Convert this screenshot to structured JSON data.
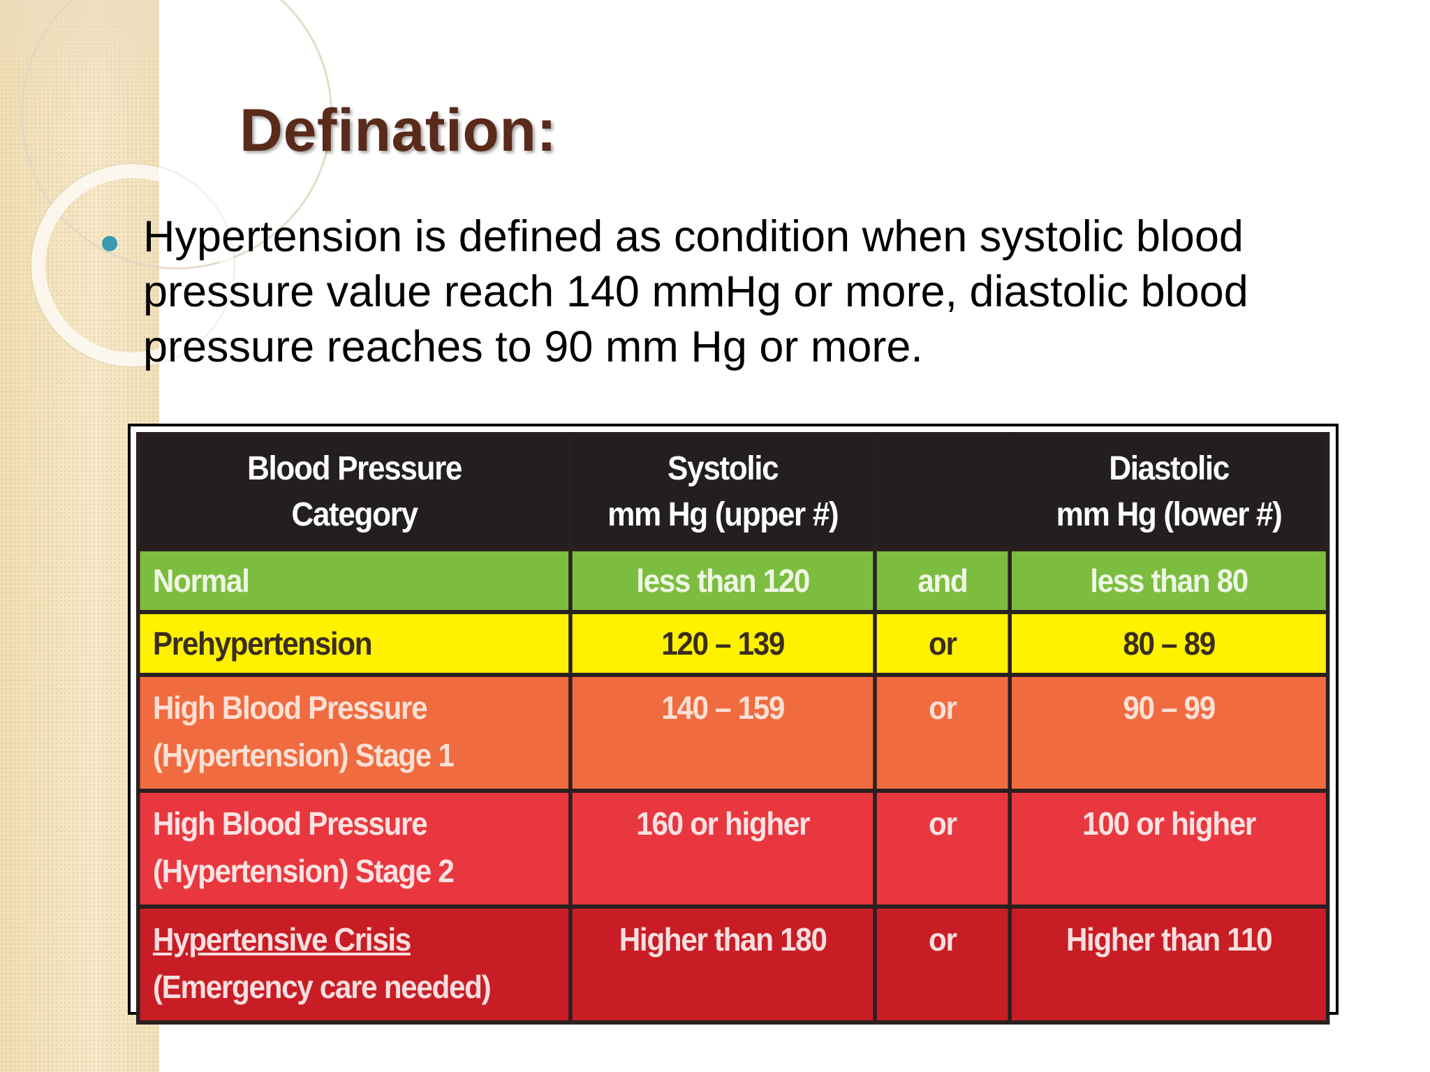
{
  "slide": {
    "title": "Defination:",
    "bullet": "Hypertension is defined as condition when systolic blood pressure value reach 140 mmHg or more, diastolic blood pressure reaches to 90 mm Hg or more."
  },
  "table": {
    "headers": {
      "category_line1": "Blood Pressure",
      "category_line2": "Category",
      "systolic_line1": "Systolic",
      "systolic_line2": "mm Hg (upper #)",
      "diastolic_line1": "Diastolic",
      "diastolic_line2": "mm Hg (lower #)"
    },
    "rows": [
      {
        "category_line1": "Normal",
        "category_line2": "",
        "systolic": "less than 120",
        "operator": "and",
        "diastolic": "less than 80",
        "color": "#7cbd3f"
      },
      {
        "category_line1": "Prehypertension",
        "category_line2": "",
        "systolic": "120 – 139",
        "operator": "or",
        "diastolic": "80 – 89",
        "color": "#fff200"
      },
      {
        "category_line1": "High Blood Pressure",
        "category_line2": "(Hypertension) Stage 1",
        "systolic": "140 – 159",
        "operator": "or",
        "diastolic": "90 – 99",
        "color": "#f06b40"
      },
      {
        "category_line1": "High Blood Pressure",
        "category_line2": "(Hypertension) Stage 2",
        "systolic": "160 or higher",
        "operator": "or",
        "diastolic": "100 or higher",
        "color": "#e9373f"
      },
      {
        "category_line1": "Hypertensive Crisis",
        "category_line2": "(Emergency care needed)",
        "systolic": "Higher than 180",
        "operator": "or",
        "diastolic": "Higher than 110",
        "color": "#c81d24"
      }
    ]
  },
  "colors": {
    "title": "#5a2a1b",
    "bullet": "#3b9ab2",
    "header_bg": "#231f20"
  }
}
